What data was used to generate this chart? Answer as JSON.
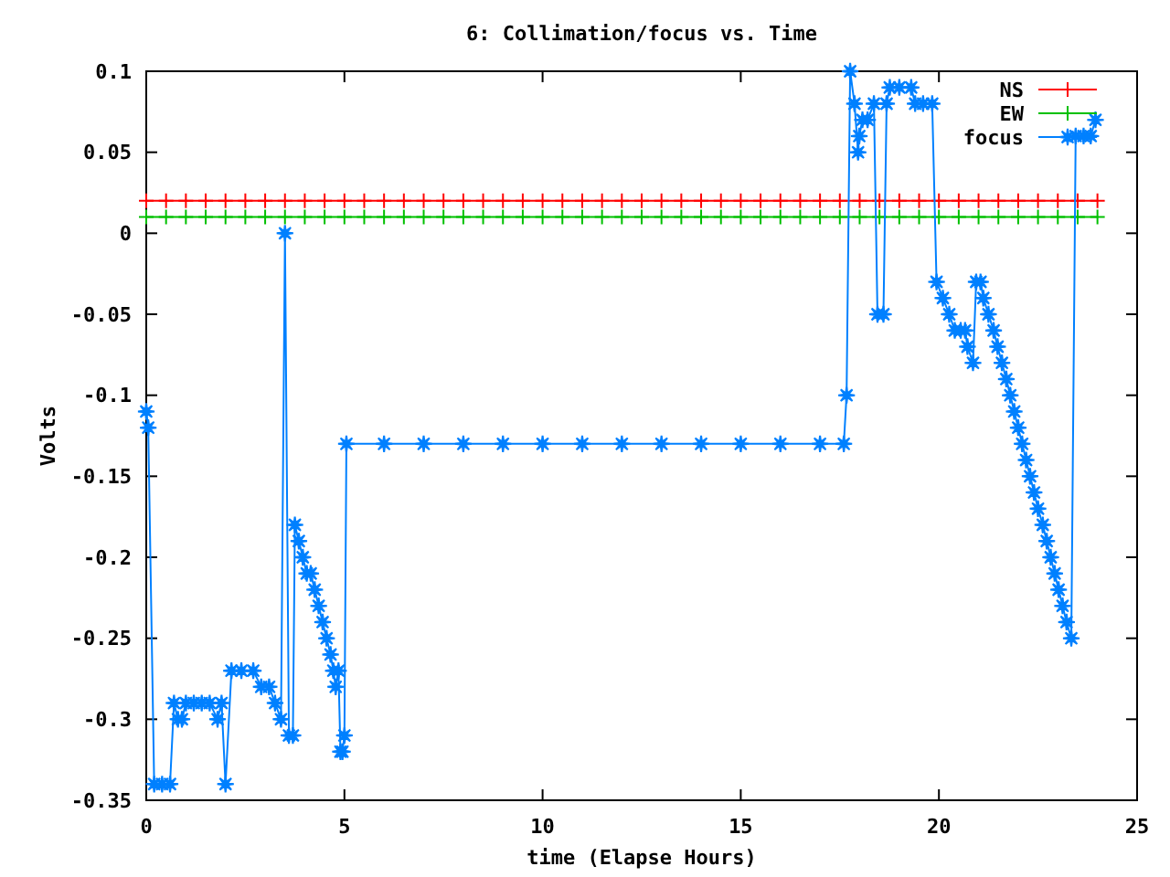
{
  "chart_data": {
    "type": "line",
    "title": "6: Collimation/focus vs. Time",
    "xlabel": "time (Elapse Hours)",
    "ylabel": "Volts",
    "xlim": [
      0,
      25
    ],
    "xticks": [
      0,
      5,
      10,
      15,
      20,
      25
    ],
    "ylim": [
      -0.35,
      0.1
    ],
    "yticks": [
      -0.35,
      -0.3,
      -0.25,
      -0.2,
      -0.15,
      -0.1,
      -0.05,
      0,
      0.05,
      0.1
    ],
    "legend": "top right",
    "grid": false,
    "line_style": "solid",
    "x": [
      0,
      0.5,
      1,
      1.5,
      2,
      2.5,
      3,
      3.5,
      4,
      4.5,
      5,
      5.5,
      6,
      6.5,
      7,
      7.5,
      8,
      8.5,
      9,
      9.5,
      10,
      10.5,
      11,
      11.5,
      12,
      12.5,
      13,
      13.5,
      14,
      14.5,
      15,
      15.5,
      16,
      16.5,
      17,
      17.5,
      18,
      18.5,
      19,
      19.5,
      20,
      20.5,
      21,
      21.5,
      22,
      22.5,
      23,
      23.5,
      24
    ],
    "series": [
      {
        "name": "NS",
        "color": "#ff0000",
        "marker": "cross",
        "values": [
          0.02,
          0.02,
          0.02,
          0.02,
          0.02,
          0.02,
          0.02,
          0.02,
          0.02,
          0.02,
          0.02,
          0.02,
          0.02,
          0.02,
          0.02,
          0.02,
          0.02,
          0.02,
          0.02,
          0.02,
          0.02,
          0.02,
          0.02,
          0.02,
          0.02,
          0.02,
          0.02,
          0.02,
          0.02,
          0.02,
          0.02,
          0.02,
          0.02,
          0.02,
          0.02,
          0.02,
          0.02,
          0.02,
          0.02,
          0.02,
          0.02,
          0.02,
          0.02,
          0.02,
          0.02,
          0.02,
          0.02,
          0.02,
          0.02
        ]
      },
      {
        "name": "EW",
        "color": "#00c000",
        "marker": "cross",
        "values": [
          0.01,
          0.01,
          0.01,
          0.01,
          0.01,
          0.01,
          0.01,
          0.01,
          0.01,
          0.01,
          0.01,
          0.01,
          0.01,
          0.01,
          0.01,
          0.01,
          0.01,
          0.01,
          0.01,
          0.01,
          0.01,
          0.01,
          0.01,
          0.01,
          0.01,
          0.01,
          0.01,
          0.01,
          0.01,
          0.01,
          0.01,
          0.01,
          0.01,
          0.01,
          0.01,
          0.01,
          0.01,
          0.01,
          0.01,
          0.01,
          0.01,
          0.01,
          0.01,
          0.01,
          0.01,
          0.01,
          0.01,
          0.01,
          0.01
        ]
      },
      {
        "name": "focus",
        "color": "#0080ff",
        "marker": "star",
        "x": [
          0,
          0.05,
          0.2,
          0.4,
          0.6,
          0.7,
          0.8,
          0.9,
          1.0,
          1.2,
          1.4,
          1.6,
          1.8,
          1.9,
          2.0,
          2.15,
          2.4,
          2.7,
          2.9,
          3.1,
          3.25,
          3.4,
          3.5,
          3.6,
          3.7,
          3.75,
          3.85,
          3.95,
          4.05,
          4.15,
          4.25,
          4.35,
          4.45,
          4.55,
          4.65,
          4.72,
          4.78,
          4.85,
          4.9,
          4.95,
          5.0,
          5.05,
          6,
          7,
          8,
          9,
          10,
          11,
          12,
          13,
          14,
          15,
          16,
          17,
          17.6,
          17.67,
          17.76,
          17.87,
          17.96,
          17.99,
          18.07,
          18.2,
          18.36,
          18.45,
          18.6,
          18.68,
          18.76,
          19.0,
          19.3,
          19.4,
          19.6,
          19.83,
          19.94,
          20.1,
          20.26,
          20.4,
          20.55,
          20.66,
          20.72,
          20.86,
          20.94,
          21.05,
          21.12,
          21.25,
          21.38,
          21.48,
          21.59,
          21.7,
          21.8,
          21.9,
          22.0,
          22.1,
          22.2,
          22.3,
          22.4,
          22.5,
          22.62,
          22.72,
          22.82,
          22.92,
          23.02,
          23.12,
          23.22,
          23.34,
          23.45,
          23.65,
          23.83,
          23.95
        ],
        "values": [
          -0.11,
          -0.12,
          -0.34,
          -0.34,
          -0.34,
          -0.29,
          -0.3,
          -0.3,
          -0.29,
          -0.29,
          -0.29,
          -0.29,
          -0.3,
          -0.29,
          -0.34,
          -0.27,
          -0.27,
          -0.27,
          -0.28,
          -0.28,
          -0.29,
          -0.3,
          0,
          -0.31,
          -0.31,
          -0.18,
          -0.19,
          -0.2,
          -0.21,
          -0.21,
          -0.22,
          -0.23,
          -0.24,
          -0.25,
          -0.26,
          -0.27,
          -0.28,
          -0.27,
          -0.32,
          -0.32,
          -0.31,
          -0.13,
          -0.13,
          -0.13,
          -0.13,
          -0.13,
          -0.13,
          -0.13,
          -0.13,
          -0.13,
          -0.13,
          -0.13,
          -0.13,
          -0.13,
          -0.13,
          -0.1,
          0.1,
          0.08,
          0.05,
          0.06,
          0.07,
          0.07,
          0.08,
          -0.05,
          -0.05,
          0.08,
          0.09,
          0.09,
          0.09,
          0.08,
          0.08,
          0.08,
          -0.03,
          -0.04,
          -0.05,
          -0.06,
          -0.06,
          -0.06,
          -0.07,
          -0.08,
          -0.03,
          -0.03,
          -0.04,
          -0.05,
          -0.06,
          -0.07,
          -0.08,
          -0.09,
          -0.1,
          -0.11,
          -0.12,
          -0.13,
          -0.14,
          -0.15,
          -0.16,
          -0.17,
          -0.18,
          -0.19,
          -0.2,
          -0.21,
          -0.22,
          -0.23,
          -0.24,
          -0.25,
          0.06,
          0.06,
          0.06,
          0.07
        ]
      }
    ]
  }
}
